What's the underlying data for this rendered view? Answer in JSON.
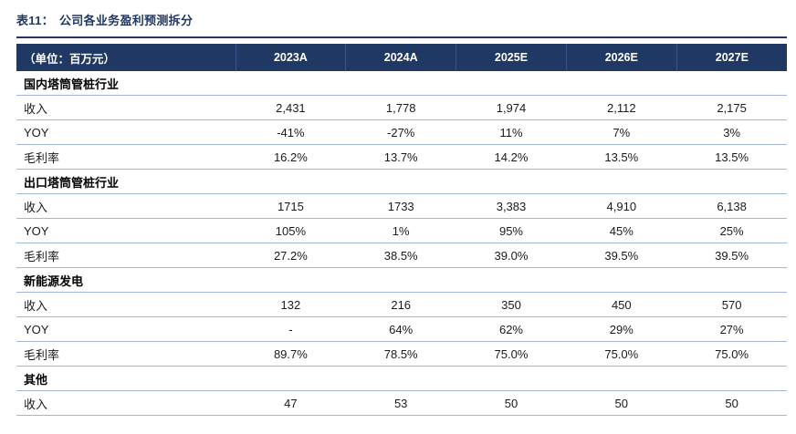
{
  "title": {
    "prefix": "表11：",
    "text": "公司各业务盈利预测拆分"
  },
  "colors": {
    "header_bg": "#203864",
    "title_text": "#1F3864",
    "row_border": "#9FB6DA"
  },
  "table": {
    "unit_header": "（单位：百万元）",
    "columns": [
      "2023A",
      "2024A",
      "2025E",
      "2026E",
      "2027E"
    ],
    "sections": [
      {
        "name": "国内塔筒管桩行业",
        "rows": [
          {
            "label": "收入",
            "values": [
              "2,431",
              "1,778",
              "1,974",
              "2,112",
              "2,175"
            ]
          },
          {
            "label": "YOY",
            "values": [
              "-41%",
              "-27%",
              "11%",
              "7%",
              "3%"
            ]
          },
          {
            "label": "毛利率",
            "values": [
              "16.2%",
              "13.7%",
              "14.2%",
              "13.5%",
              "13.5%"
            ]
          }
        ]
      },
      {
        "name": "出口塔筒管桩行业",
        "rows": [
          {
            "label": "收入",
            "values": [
              "1715",
              "1733",
              "3,383",
              "4,910",
              "6,138"
            ]
          },
          {
            "label": "YOY",
            "values": [
              "105%",
              "1%",
              "95%",
              "45%",
              "25%"
            ]
          },
          {
            "label": "毛利率",
            "values": [
              "27.2%",
              "38.5%",
              "39.0%",
              "39.5%",
              "39.5%"
            ]
          }
        ]
      },
      {
        "name": "新能源发电",
        "rows": [
          {
            "label": "收入",
            "values": [
              "132",
              "216",
              "350",
              "450",
              "570"
            ]
          },
          {
            "label": "YOY",
            "values": [
              "-",
              "64%",
              "62%",
              "29%",
              "27%"
            ]
          },
          {
            "label": "毛利率",
            "values": [
              "89.7%",
              "78.5%",
              "75.0%",
              "75.0%",
              "75.0%"
            ]
          }
        ]
      },
      {
        "name": "其他",
        "rows": [
          {
            "label": "收入",
            "values": [
              "47",
              "53",
              "50",
              "50",
              "50"
            ]
          }
        ]
      }
    ]
  }
}
